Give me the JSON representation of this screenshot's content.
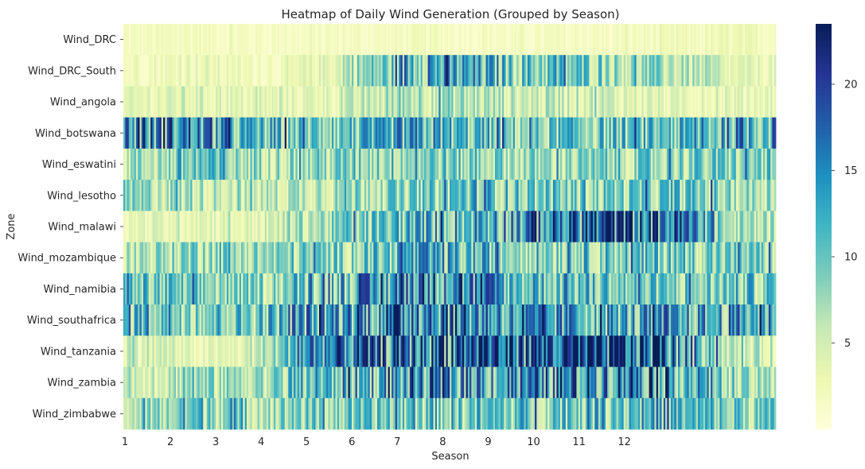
{
  "chart_data": {
    "type": "heatmap",
    "title": "Heatmap of Daily Wind Generation (Grouped by Season)",
    "xlabel": "Season",
    "ylabel": "Zone",
    "rows": [
      "Wind_DRC",
      "Wind_DRC_South",
      "Wind_angola",
      "Wind_botswana",
      "Wind_eswatini",
      "Wind_lesotho",
      "Wind_malawi",
      "Wind_mozambique",
      "Wind_namibia",
      "Wind_southafrica",
      "Wind_tanzania",
      "Wind_zambia",
      "Wind_zimbabwe"
    ],
    "x_ticks": [
      "1",
      "2",
      "3",
      "4",
      "5",
      "6",
      "7",
      "8",
      "9",
      "10",
      "11",
      "12"
    ],
    "columns_per_season": 30,
    "season_profiles": {
      "Wind_DRC": [
        1.5,
        1.8,
        1.6,
        1.4,
        1.5,
        1.6,
        1.5,
        1.4,
        1.5,
        1.6,
        1.8,
        2.0
      ],
      "Wind_DRC_South": [
        2,
        3,
        2,
        2,
        6,
        12,
        11,
        9,
        9,
        7,
        6,
        3
      ],
      "Wind_angola": [
        3,
        4,
        3,
        3,
        4,
        7,
        6,
        5,
        5,
        4,
        3,
        3
      ],
      "Wind_botswana": [
        13,
        14,
        10,
        9,
        9,
        11,
        10,
        8,
        9,
        9,
        9,
        12
      ],
      "Wind_eswatini": [
        6,
        9,
        7,
        7,
        8,
        9,
        8,
        7,
        7,
        7,
        8,
        8
      ],
      "Wind_lesotho": [
        7,
        6,
        5,
        6,
        8,
        7,
        10,
        9,
        8,
        8,
        9,
        7
      ],
      "Wind_malawi": [
        3,
        4,
        3,
        6,
        8,
        10,
        11,
        13,
        15,
        18,
        15,
        6
      ],
      "Wind_mozambique": [
        6,
        8,
        7,
        8,
        8,
        11,
        10,
        9,
        9,
        9,
        9,
        8
      ],
      "Wind_namibia": [
        9,
        8,
        7,
        9,
        11,
        15,
        14,
        10,
        10,
        9,
        8,
        9
      ],
      "Wind_southafrica": [
        11,
        10,
        9,
        12,
        13,
        16,
        15,
        12,
        12,
        11,
        11,
        12
      ],
      "Wind_tanzania": [
        5,
        3,
        3,
        13,
        15,
        16,
        17,
        18,
        17,
        18,
        14,
        5
      ],
      "Wind_zambia": [
        5,
        7,
        6,
        9,
        11,
        12,
        13,
        13,
        13,
        17,
        13,
        6
      ],
      "Wind_zimbabwe": [
        6,
        10,
        7,
        8,
        8,
        9,
        9,
        9,
        10,
        11,
        10,
        8
      ]
    },
    "colorscale": "YlGnBu",
    "vmin": 0,
    "vmax": 23.5,
    "colorbar_ticks": [
      5,
      10,
      15,
      20
    ],
    "grid": false,
    "legend": "colorbar-right"
  }
}
